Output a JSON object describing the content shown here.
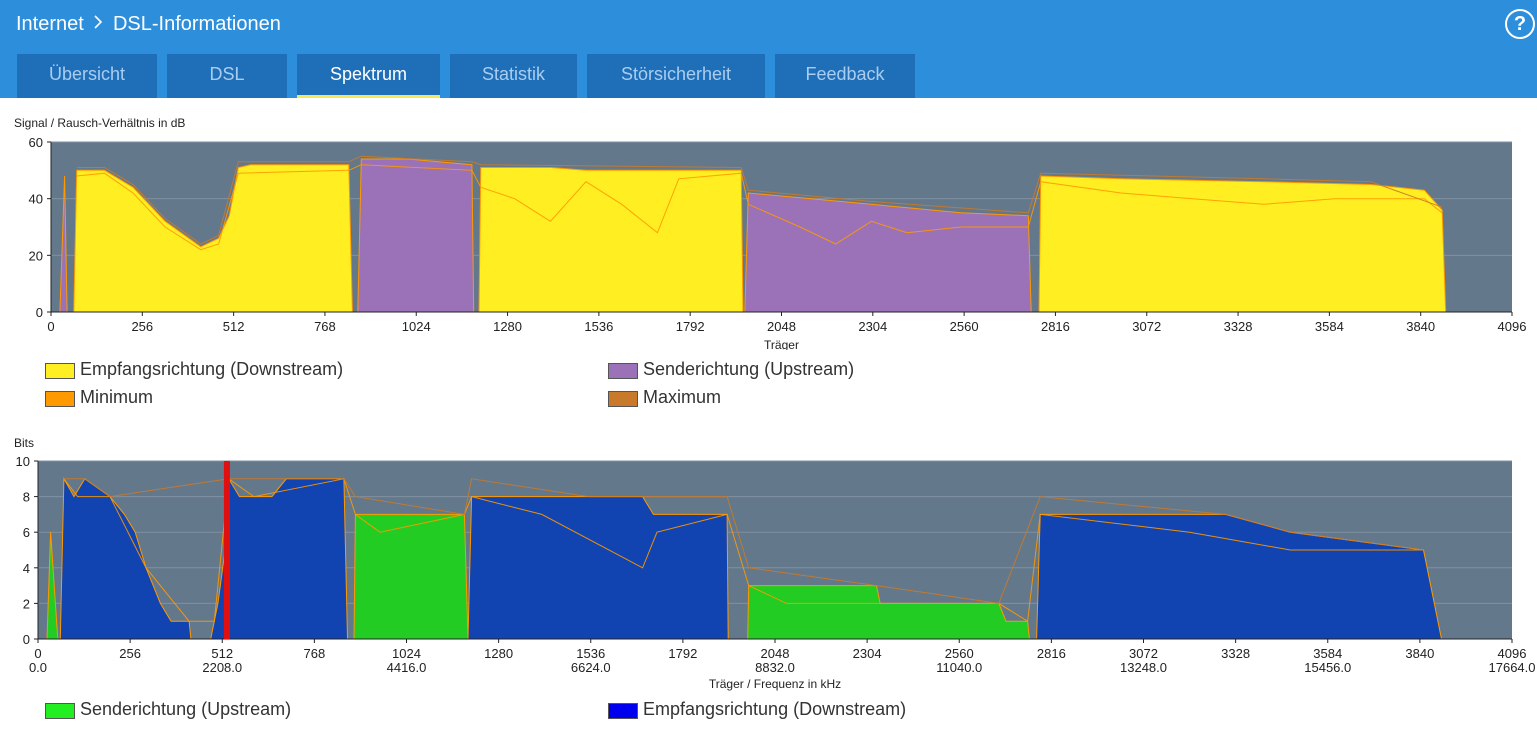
{
  "header": {
    "breadcrumb": [
      "Internet",
      "DSL-Informationen"
    ],
    "separator": ">",
    "help_label": "?"
  },
  "tabs": [
    {
      "label": "Übersicht",
      "active": false
    },
    {
      "label": "DSL",
      "active": false
    },
    {
      "label": "Spektrum",
      "active": true
    },
    {
      "label": "Statistik",
      "active": false
    },
    {
      "label": "Störsicherheit",
      "active": false
    },
    {
      "label": "Feedback",
      "active": false
    }
  ],
  "colors": {
    "header_bg": "#2d8fdc",
    "tab_bg": "#1f6fb8",
    "plot_bg": "#64788c",
    "downstream_snr": "#ffee22",
    "upstream_snr": "#9b72b8",
    "minimum": "#ff9900",
    "maximum": "#c87a2a",
    "upstream_bits": "#22cc22",
    "downstream_bits": "#1144b0",
    "pilot": "#e01010"
  },
  "snr_chart": {
    "title": "Signal / Rausch-Verhältnis in dB",
    "xlabel": "Träger",
    "ylim": [
      0,
      60
    ],
    "yticks": [
      "0",
      "20",
      "40",
      "60"
    ],
    "xticks": [
      "0",
      "256",
      "512",
      "768",
      "1024",
      "1280",
      "1536",
      "1792",
      "2048",
      "2304",
      "2560",
      "2816",
      "3072",
      "3328",
      "3584",
      "3840",
      "4096"
    ],
    "legend": [
      {
        "label": "Empfangsrichtung (Downstream)",
        "color": "#ffee22"
      },
      {
        "label": "Senderichtung (Upstream)",
        "color": "#9b72b8"
      },
      {
        "label": "Minimum",
        "color": "#ff9900"
      },
      {
        "label": "Maximum",
        "color": "#c87a2a"
      }
    ]
  },
  "bits_chart": {
    "title": "Bits",
    "xlabel": "Träger / Frequenz in kHz",
    "ylim": [
      0,
      10
    ],
    "yticks": [
      "0",
      "2",
      "4",
      "6",
      "8",
      "10"
    ],
    "xticks": [
      "0",
      "256",
      "512",
      "768",
      "1024",
      "1280",
      "1536",
      "1792",
      "2048",
      "2304",
      "2560",
      "2816",
      "3072",
      "3328",
      "3584",
      "3840",
      "4096"
    ],
    "freq_ticks": [
      {
        "carrier": 0,
        "label": "0.0"
      },
      {
        "carrier": 512,
        "label": "2208.0"
      },
      {
        "carrier": 1024,
        "label": "4416.0"
      },
      {
        "carrier": 1536,
        "label": "6624.0"
      },
      {
        "carrier": 2048,
        "label": "8832.0"
      },
      {
        "carrier": 2560,
        "label": "11040.0"
      },
      {
        "carrier": 3072,
        "label": "13248.0"
      },
      {
        "carrier": 3584,
        "label": "15456.0"
      },
      {
        "carrier": 4096,
        "label": "17664.0"
      }
    ],
    "pilot_carrier": 525,
    "legend": [
      {
        "label": "Senderichtung (Upstream)",
        "color": "#22cc22"
      },
      {
        "label": "Empfangsrichtung (Downstream)",
        "color": "#1144b0"
      }
    ]
  },
  "chart_data": [
    {
      "type": "area",
      "title": "Signal / Rausch-Verhältnis in dB",
      "xlabel": "Träger",
      "ylabel": "",
      "xlim": [
        0,
        4096
      ],
      "ylim": [
        0,
        60
      ],
      "series": [
        {
          "name": "Empfangsrichtung (Downstream)",
          "segments": [
            [
              [
                64,
                0
              ],
              [
                72,
                50
              ],
              [
                150,
                50
              ],
              [
                230,
                44
              ],
              [
                320,
                32
              ],
              [
                420,
                23
              ],
              [
                470,
                26
              ],
              [
                500,
                34
              ],
              [
                525,
                51
              ],
              [
                560,
                52
              ],
              [
                835,
                52
              ],
              [
                845,
                0
              ]
            ],
            [
              [
                1200,
                0
              ],
              [
                1205,
                51
              ],
              [
                1400,
                51
              ],
              [
                1500,
                50
              ],
              [
                1760,
                50
              ],
              [
                1935,
                50
              ],
              [
                1940,
                0
              ]
            ],
            [
              [
                2770,
                0
              ],
              [
                2775,
                48
              ],
              [
                3000,
                47
              ],
              [
                3400,
                46
              ],
              [
                3700,
                45
              ],
              [
                3850,
                43
              ],
              [
                3900,
                36
              ],
              [
                3910,
                0
              ]
            ]
          ]
        },
        {
          "name": "Senderichtung (Upstream)",
          "segments": [
            [
              [
                25,
                0
              ],
              [
                38,
                48
              ],
              [
                45,
                0
              ]
            ],
            [
              [
                860,
                0
              ],
              [
                870,
                54
              ],
              [
                1000,
                54
              ],
              [
                1180,
                52
              ],
              [
                1185,
                0
              ]
            ],
            [
              [
                1945,
                0
              ],
              [
                1955,
                42
              ],
              [
                2300,
                38
              ],
              [
                2550,
                35
              ],
              [
                2740,
                34
              ],
              [
                2748,
                0
              ]
            ]
          ]
        },
        {
          "name": "Minimum",
          "points": [
            [
              72,
              48
            ],
            [
              150,
              49
            ],
            [
              230,
              42
            ],
            [
              320,
              30
            ],
            [
              420,
              22
            ],
            [
              470,
              24
            ],
            [
              525,
              49
            ],
            [
              835,
              50
            ],
            [
              870,
              52
            ],
            [
              1180,
              50
            ],
            [
              1205,
              44
            ],
            [
              1300,
              40
            ],
            [
              1400,
              32
            ],
            [
              1500,
              46
            ],
            [
              1600,
              38
            ],
            [
              1700,
              28
            ],
            [
              1760,
              47
            ],
            [
              1935,
              49
            ],
            [
              1955,
              38
            ],
            [
              2100,
              30
            ],
            [
              2200,
              24
            ],
            [
              2300,
              32
            ],
            [
              2400,
              28
            ],
            [
              2550,
              30
            ],
            [
              2740,
              30
            ],
            [
              2775,
              46
            ],
            [
              3000,
              42
            ],
            [
              3200,
              40
            ],
            [
              3400,
              38
            ],
            [
              3600,
              40
            ],
            [
              3850,
              40
            ],
            [
              3900,
              35
            ]
          ]
        },
        {
          "name": "Maximum",
          "points": [
            [
              72,
              51
            ],
            [
              150,
              51
            ],
            [
              230,
              45
            ],
            [
              320,
              33
            ],
            [
              420,
              24
            ],
            [
              470,
              27
            ],
            [
              525,
              53
            ],
            [
              835,
              53
            ],
            [
              870,
              55
            ],
            [
              1180,
              53
            ],
            [
              1205,
              52
            ],
            [
              1935,
              51
            ],
            [
              1955,
              43
            ],
            [
              2300,
              39
            ],
            [
              2740,
              35
            ],
            [
              2775,
              49
            ],
            [
              3400,
              47
            ],
            [
              3700,
              46
            ],
            [
              3900,
              37
            ]
          ]
        }
      ]
    },
    {
      "type": "area",
      "title": "Bits",
      "xlabel": "Träger / Frequenz in kHz",
      "ylabel": "",
      "xlim": [
        0,
        4096
      ],
      "ylim": [
        0,
        10
      ],
      "series": [
        {
          "name": "Senderichtung (Upstream)",
          "segments": [
            [
              [
                25,
                0
              ],
              [
                35,
                6
              ],
              [
                55,
                0
              ]
            ],
            [
              [
                878,
                0
              ],
              [
                882,
                7
              ],
              [
                1185,
                7
              ],
              [
                1195,
                0
              ]
            ],
            [
              [
                1972,
                0
              ],
              [
                1975,
                3
              ],
              [
                2330,
                3
              ],
              [
                2340,
                2
              ],
              [
                2670,
                2
              ],
              [
                2690,
                1
              ],
              [
                2750,
                1
              ],
              [
                2755,
                0
              ]
            ]
          ]
        },
        {
          "name": "Empfangsrichtung (Downstream)",
          "segments": [
            [
              [
                62,
                0
              ],
              [
                72,
                9
              ],
              [
                100,
                8
              ],
              [
                130,
                9
              ],
              [
                200,
                8
              ],
              [
                240,
                7
              ],
              [
                270,
                6
              ],
              [
                300,
                4
              ],
              [
                320,
                3
              ],
              [
                340,
                2
              ],
              [
                370,
                1
              ],
              [
                420,
                1
              ],
              [
                425,
                0
              ]
            ],
            [
              [
                480,
                0
              ],
              [
                490,
                1
              ],
              [
                500,
                2
              ],
              [
                520,
                5
              ],
              [
                530,
                9
              ],
              [
                560,
                8
              ],
              [
                650,
                8
              ],
              [
                690,
                9
              ],
              [
                850,
                9
              ],
              [
                860,
                0
              ]
            ],
            [
              [
                1195,
                0
              ],
              [
                1205,
                8
              ],
              [
                1530,
                8
              ],
              [
                1680,
                8
              ],
              [
                1710,
                7
              ],
              [
                1915,
                7
              ],
              [
                1918,
                0
              ]
            ],
            [
              [
                2775,
                0
              ],
              [
                2785,
                7
              ],
              [
                3300,
                7
              ],
              [
                3480,
                6
              ],
              [
                3850,
                5
              ],
              [
                3900,
                0
              ]
            ]
          ]
        },
        {
          "name": "Minimum",
          "points": [
            [
              72,
              9
            ],
            [
              110,
              8
            ],
            [
              200,
              8
            ],
            [
              300,
              4
            ],
            [
              420,
              1
            ],
            [
              490,
              1
            ],
            [
              530,
              9
            ],
            [
              600,
              8
            ],
            [
              850,
              9
            ],
            [
              882,
              7
            ],
            [
              950,
              6
            ],
            [
              1185,
              7
            ],
            [
              1205,
              8
            ],
            [
              1400,
              7
            ],
            [
              1680,
              4
            ],
            [
              1720,
              6
            ],
            [
              1915,
              7
            ],
            [
              1975,
              3
            ],
            [
              2080,
              2
            ],
            [
              2200,
              2
            ],
            [
              2330,
              2
            ],
            [
              2670,
              2
            ],
            [
              2750,
              1
            ],
            [
              2785,
              7
            ],
            [
              3200,
              6
            ],
            [
              3480,
              5
            ],
            [
              3850,
              5
            ]
          ]
        },
        {
          "name": "Maximum",
          "points": [
            [
              72,
              9
            ],
            [
              130,
              9
            ],
            [
              200,
              8
            ],
            [
              530,
              9
            ],
            [
              690,
              9
            ],
            [
              850,
              9
            ],
            [
              882,
              8
            ],
            [
              1185,
              7
            ],
            [
              1205,
              9
            ],
            [
              1530,
              8
            ],
            [
              1915,
              8
            ],
            [
              1975,
              4
            ],
            [
              2330,
              3
            ],
            [
              2670,
              2
            ],
            [
              2785,
              8
            ],
            [
              3300,
              7
            ],
            [
              3480,
              6
            ],
            [
              3850,
              5
            ]
          ]
        }
      ]
    }
  ]
}
